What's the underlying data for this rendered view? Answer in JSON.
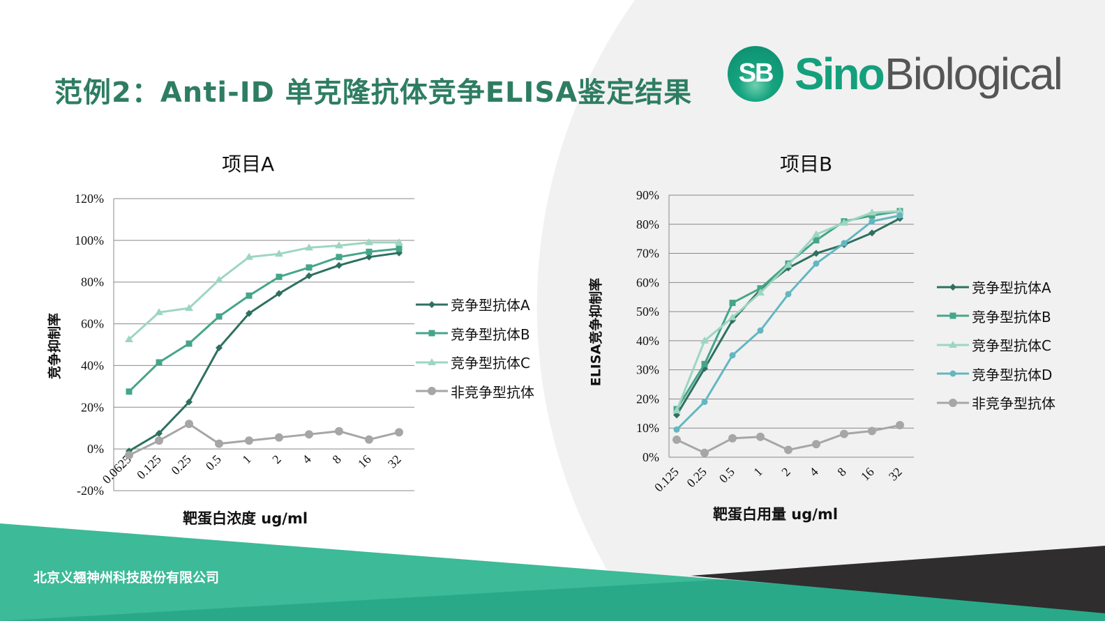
{
  "title": "范例2：Anti-ID 单克隆抗体竞争ELISA鉴定结果",
  "logo": {
    "mark": "SB",
    "word1": "Sino",
    "word2": "Biological"
  },
  "footer": "北京义翘神州科技股份有限公司",
  "colors": {
    "A": "#2e7060",
    "B": "#45a58a",
    "C": "#9dd6c0",
    "D": "#62b7c0",
    "non": "#a6a6a6",
    "brand": "#2e7d63"
  },
  "chart_data": [
    {
      "type": "line",
      "title": "项目A",
      "xlabel": "靶蛋白浓度 ug/ml",
      "ylabel": "竞争抑制率",
      "categories": [
        "0.0625",
        "0.125",
        "0.25",
        "0.5",
        "1",
        "2",
        "4",
        "8",
        "16",
        "32"
      ],
      "ylim": [
        -20,
        120
      ],
      "yticks": [
        "-20%",
        "0%",
        "20%",
        "40%",
        "60%",
        "80%",
        "100%",
        "120%"
      ],
      "grid": true,
      "legend": "right",
      "series": [
        {
          "name": "竞争型抗体A",
          "marker": "diamond",
          "color": "#2e7060",
          "values": [
            -1,
            7.5,
            22.5,
            48.5,
            65,
            74.5,
            83,
            88,
            92,
            94
          ]
        },
        {
          "name": "竞争型抗体B",
          "marker": "square",
          "color": "#45a58a",
          "values": [
            27.5,
            41.5,
            50.5,
            63.5,
            73.5,
            82.5,
            87,
            92,
            94.5,
            96
          ]
        },
        {
          "name": "竞争型抗体C",
          "marker": "triangle",
          "color": "#9dd6c0",
          "values": [
            52.5,
            65.5,
            67.5,
            81,
            92,
            93.5,
            96.5,
            97.5,
            99,
            99
          ]
        },
        {
          "name": "非竞争型抗体",
          "marker": "circle",
          "color": "#a6a6a6",
          "values": [
            -3,
            4,
            12,
            2.5,
            4,
            5.5,
            7,
            8.5,
            4.5,
            8
          ]
        }
      ]
    },
    {
      "type": "line",
      "title": "项目B",
      "xlabel": "靶蛋白用量 ug/ml",
      "ylabel": "ELISA竞争抑制率",
      "categories": [
        "0.125",
        "0.25",
        "0.5",
        "1",
        "2",
        "4",
        "8",
        "16",
        "32"
      ],
      "ylim": [
        0,
        90
      ],
      "yticks": [
        "0%",
        "10%",
        "20%",
        "30%",
        "40%",
        "50%",
        "60%",
        "70%",
        "80%",
        "90%"
      ],
      "grid": true,
      "legend": "right",
      "series": [
        {
          "name": "竞争型抗体A",
          "marker": "diamond",
          "color": "#2e7060",
          "values": [
            14.5,
            30.5,
            47,
            57.5,
            65,
            70,
            73,
            77,
            82
          ]
        },
        {
          "name": "竞争型抗体B",
          "marker": "square",
          "color": "#45a58a",
          "values": [
            16.5,
            32,
            53,
            58,
            66.5,
            74.5,
            81,
            83,
            84.5
          ]
        },
        {
          "name": "竞争型抗体C",
          "marker": "triangle",
          "color": "#9dd6c0",
          "values": [
            16,
            40,
            48,
            56.5,
            66,
            76.5,
            80.5,
            84,
            84.5
          ]
        },
        {
          "name": "竞争型抗体D",
          "marker": "circle",
          "color": "#62b7c0",
          "values": [
            9.5,
            19,
            35,
            43.5,
            56,
            66.5,
            73.5,
            81,
            83
          ]
        },
        {
          "name": "非竞争型抗体",
          "marker": "circle",
          "color": "#a6a6a6",
          "values": [
            6,
            1.5,
            6.5,
            7,
            2.5,
            4.5,
            8,
            9,
            11
          ]
        }
      ]
    }
  ]
}
